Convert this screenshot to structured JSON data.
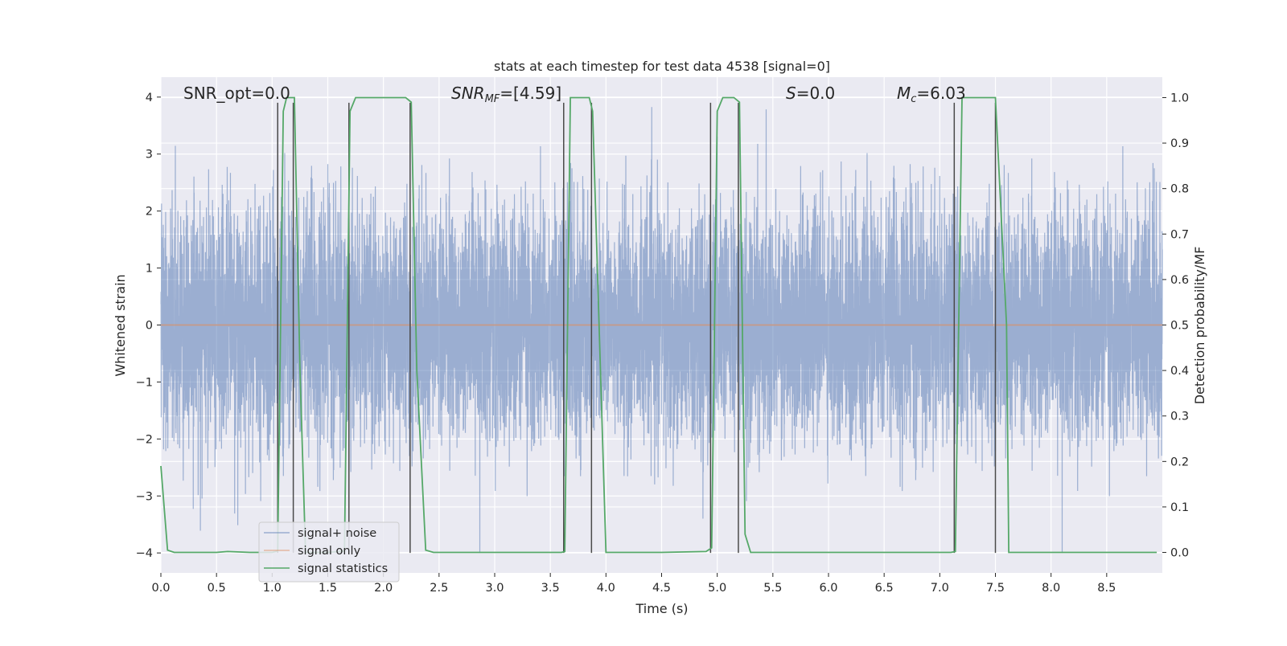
{
  "chart_data": {
    "type": "line",
    "title": "stats at each timestep for test data 4538 [signal=0]",
    "xlabel": "Time (s)",
    "ylabel": "Whitened strain",
    "y2label": "Detection probability/MF",
    "xlim": [
      0,
      9
    ],
    "ylim": [
      -4.35,
      4.35
    ],
    "y2lim": [
      -0.045,
      1.045
    ],
    "xticks": [
      0.0,
      0.5,
      1.0,
      1.5,
      2.0,
      2.5,
      3.0,
      3.5,
      4.0,
      4.5,
      5.0,
      5.5,
      6.0,
      6.5,
      7.0,
      7.5,
      8.0,
      8.5
    ],
    "xtick_labels": [
      "0.0",
      "0.5",
      "1.0",
      "1.5",
      "2.0",
      "2.5",
      "3.0",
      "3.5",
      "4.0",
      "4.5",
      "5.0",
      "5.5",
      "6.0",
      "6.5",
      "7.0",
      "7.5",
      "8.0",
      "8.5"
    ],
    "yticks": [
      -4,
      -3,
      -2,
      -1,
      0,
      1,
      2,
      3,
      4
    ],
    "ytick_labels": [
      "−4",
      "−3",
      "−2",
      "−1",
      "0",
      "1",
      "2",
      "3",
      "4"
    ],
    "y2ticks": [
      0.0,
      0.1,
      0.2,
      0.3,
      0.4,
      0.5,
      0.6,
      0.7,
      0.8,
      0.9,
      1.0
    ],
    "y2tick_labels": [
      "0.0",
      "0.1",
      "0.2",
      "0.3",
      "0.4",
      "0.5",
      "0.6",
      "0.7",
      "0.8",
      "0.9",
      "1.0"
    ],
    "grid": true,
    "legend_position": "lower-left",
    "annotations": {
      "snr_opt": "SNR_opt=0.0",
      "snr_mf_main": "SNR",
      "snr_mf_sub": "MF",
      "snr_mf_value": "=[4.59]",
      "s_main": "S",
      "s_value": "=0.0",
      "mc_main": "M",
      "mc_sub": "c",
      "mc_value": "=6.03"
    },
    "colors": {
      "noise": "#4c72b0",
      "signal": "#dd8452",
      "stats": "#55a868",
      "vlines": "#4a4a4a",
      "background": "#eaeaf2",
      "grid": "#ffffff"
    },
    "series": [
      {
        "name": "signal+ noise",
        "axis": "left",
        "kind": "noise",
        "envelope": {
          "typical_upper": 1.6,
          "typical_lower": -1.6,
          "max": 4.0,
          "min": -4.0,
          "samples_per_second": 2048
        }
      },
      {
        "name": "signal only",
        "axis": "left",
        "kind": "constant",
        "value": 0.0
      },
      {
        "name": "signal statistics",
        "axis": "right",
        "x": [
          0.0,
          0.06,
          0.12,
          0.5,
          0.6,
          0.8,
          1.0,
          1.05,
          1.1,
          1.13,
          1.2,
          1.25,
          1.3,
          1.5,
          1.65,
          1.7,
          1.75,
          2.0,
          2.2,
          2.25,
          2.3,
          2.38,
          2.45,
          3.0,
          3.6,
          3.63,
          3.68,
          3.85,
          3.88,
          4.0,
          4.5,
          4.9,
          4.95,
          5.0,
          5.05,
          5.1,
          5.15,
          5.2,
          5.25,
          5.3,
          5.5,
          6.0,
          6.5,
          7.0,
          7.1,
          7.14,
          7.2,
          7.5,
          7.6,
          7.62,
          7.8,
          8.5,
          8.95
        ],
        "y": [
          0.19,
          0.005,
          0.0,
          0.0,
          0.002,
          0.0,
          0.0,
          0.003,
          0.97,
          1.0,
          1.0,
          0.4,
          0.0,
          0.0,
          0.003,
          0.97,
          1.0,
          1.0,
          1.0,
          0.99,
          0.4,
          0.005,
          0.0,
          0.0,
          0.0,
          0.002,
          1.0,
          1.0,
          0.97,
          0.0,
          0.0,
          0.002,
          0.01,
          0.97,
          1.0,
          1.0,
          1.0,
          0.99,
          0.04,
          0.0,
          0.0,
          0.0,
          0.0,
          0.0,
          0.0,
          0.002,
          1.0,
          1.0,
          0.5,
          0.0,
          0.0,
          0.0,
          0.0
        ]
      }
    ],
    "vlines_x": [
      1.05,
      1.19,
      1.69,
      2.24,
      3.62,
      3.87,
      4.94,
      5.19,
      7.13,
      7.5
    ],
    "vlines_ylim": [
      -4.0,
      3.9
    ]
  }
}
